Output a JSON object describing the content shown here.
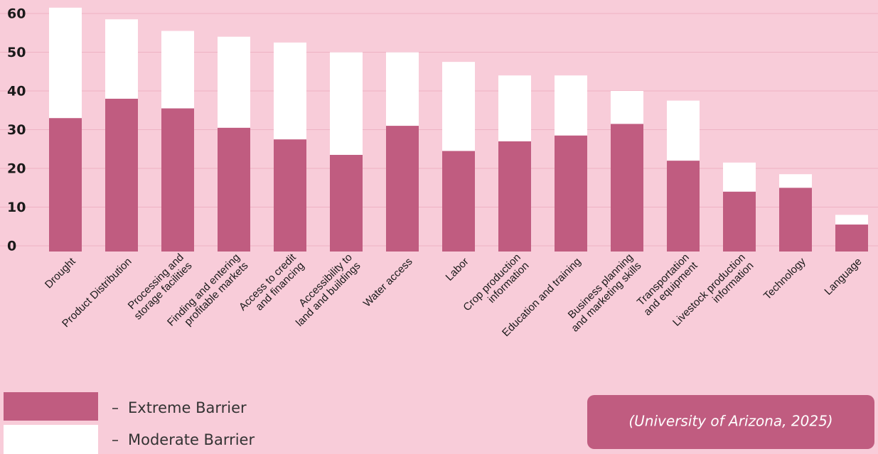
{
  "chart_data": {
    "type": "stacked_bar",
    "categories": [
      "Drought",
      "Product Distribution",
      "Processing and\nstorage facilities",
      "Finding and entering\nprofitable markets",
      "Access to credit\nand financing",
      "Accessibility to\nland and buildings",
      "Water access",
      "Labor",
      "Crop production\ninformation",
      "Education and training",
      "Business planning\nand marketing skills",
      "Transportation\nand equipment",
      "Livestock production\ninformation",
      "Technology",
      "Language"
    ],
    "series": [
      {
        "name": "Extreme Barrier",
        "color": "#c05c80",
        "values": [
          33,
          38,
          35.5,
          30.5,
          27.5,
          23.5,
          31,
          24.5,
          27,
          28.5,
          31.5,
          22,
          14,
          15,
          5.5
        ]
      },
      {
        "name": "Moderate Barrier",
        "color": "#ffffff",
        "values": [
          28.5,
          20.5,
          20,
          23.5,
          25,
          26.5,
          19,
          23,
          17,
          15.5,
          8.5,
          15.5,
          7.5,
          3.5,
          2.5
        ]
      }
    ],
    "ylim": [
      0,
      62
    ],
    "yticks": [
      0,
      10,
      20,
      30,
      40,
      50,
      60
    ],
    "grid": true,
    "source": "(University of Arizona, 2025)"
  }
}
